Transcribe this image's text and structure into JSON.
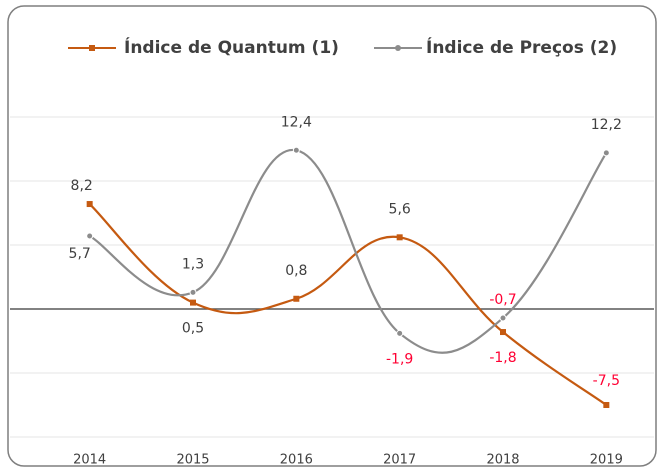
{
  "chart_data": {
    "type": "line",
    "categories": [
      "2014",
      "2015",
      "2016",
      "2017",
      "2018",
      "2019"
    ],
    "series": [
      {
        "name": "Índice de Quantum (1)",
        "color": "#c55a11",
        "values": [
          8.2,
          0.5,
          0.8,
          5.6,
          -1.8,
          -7.5
        ],
        "value_labels": [
          "8,2",
          "0,5",
          "0,8",
          "5,6",
          "-1,8",
          "-7,5"
        ]
      },
      {
        "name": "Índice de Preços (2)",
        "color": "#8c8c8c",
        "values": [
          5.7,
          1.3,
          12.4,
          -1.9,
          -0.7,
          12.2
        ],
        "value_labels": [
          "5,7",
          "1,3",
          "12,4",
          "-1,9",
          "-0,7",
          "12,2"
        ]
      }
    ],
    "ylim": [
      -10,
      15
    ],
    "yticks": [
      -10,
      -5,
      0,
      5,
      10,
      15
    ],
    "grid": true,
    "label_color": "#404040",
    "negative_label_color": "#ff0033",
    "legend": "top"
  }
}
